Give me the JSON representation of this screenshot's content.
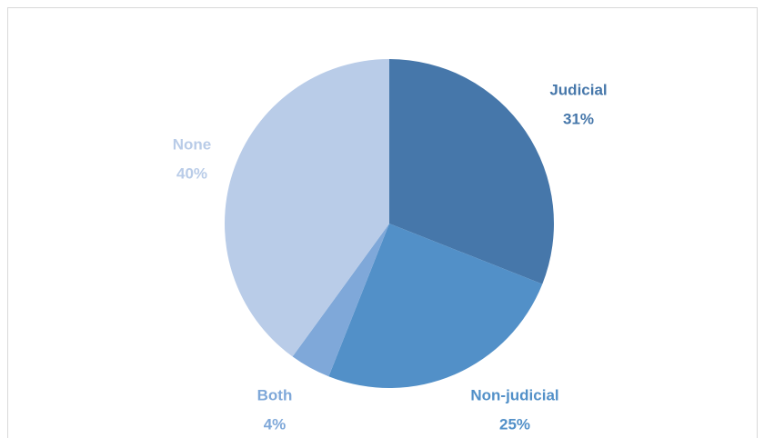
{
  "chart_data": {
    "type": "pie",
    "categories": [
      "Judicial",
      "Non-judicial",
      "Both",
      "None"
    ],
    "values": [
      31,
      25,
      4,
      40
    ],
    "value_labels": [
      "31%",
      "25%",
      "4%",
      "40%"
    ],
    "colors": [
      "#4677aa",
      "#5290c8",
      "#7fa8d9",
      "#b9cce8"
    ]
  }
}
